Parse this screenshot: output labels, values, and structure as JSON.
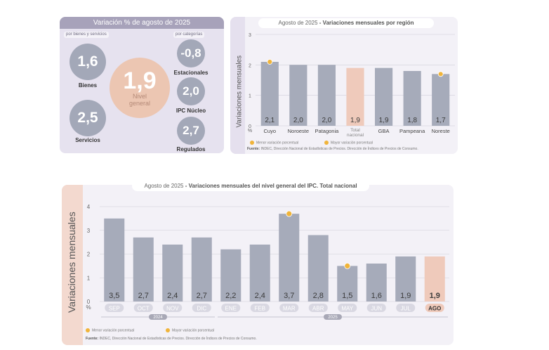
{
  "summary": {
    "header": "Variación % de agosto de 2025",
    "sub_left": "por bienes y servicios",
    "sub_right": "por categorías",
    "bienes": {
      "value": "1,6",
      "label": "Bienes"
    },
    "servicios": {
      "value": "2,5",
      "label": "Servicios"
    },
    "general": {
      "value": "1,9",
      "label_1": "Nivel",
      "label_2": "general"
    },
    "estacionales": {
      "value": "-0,8",
      "label": "Estacionales"
    },
    "nucleo": {
      "value": "2,0",
      "label": "IPC Núcleo"
    },
    "regulados": {
      "value": "2,7",
      "label": "Regulados"
    }
  },
  "chart_data": [
    {
      "type": "bar",
      "title_part1": "Agosto de 2025",
      "title_part2": "- Variaciones mensuales por región",
      "ylabel": "Variaciones mensuales",
      "unit": "%",
      "categories": [
        "Cuyo",
        "Noroeste",
        "Patagonia",
        "Total nacional",
        "GBA",
        "Pampeana",
        "Noreste"
      ],
      "values": [
        2.1,
        2.0,
        2.0,
        1.9,
        1.9,
        1.8,
        1.7
      ],
      "value_labels": [
        "2,1",
        "2,0",
        "2,0",
        "1,9",
        "1,9",
        "1,8",
        "1,7"
      ],
      "highlight_index": 3,
      "yticks": [
        0,
        1,
        2,
        3
      ],
      "ylim": [
        0,
        3
      ],
      "marker_max_index": 0,
      "marker_min_index": 6,
      "legend_min": "Menor variación porcentual",
      "legend_max": "Mayor variación porcentual",
      "source_label": "Fuente:",
      "source": "INDEC, Dirección Nacional de Estadísticas de Precios. Dirección de Índices de Precios de Consumo."
    },
    {
      "type": "bar",
      "title_part1": "Agosto de 2025",
      "title_part2": "- Variaciones mensuales del nivel general del IPC. Total nacional",
      "ylabel": "Variaciones mensuales",
      "unit": "%",
      "categories": [
        "SEP",
        "OCT",
        "NOV",
        "DIC",
        "ENE",
        "FEB",
        "MAR",
        "ABR",
        "MAY",
        "JUN",
        "JUL",
        "AGO"
      ],
      "values": [
        3.5,
        2.7,
        2.4,
        2.7,
        2.2,
        2.4,
        3.7,
        2.8,
        1.5,
        1.6,
        1.9,
        1.9
      ],
      "value_labels": [
        "3,5",
        "2,7",
        "2,4",
        "2,7",
        "2,2",
        "2,4",
        "3,7",
        "2,8",
        "1,5",
        "1,6",
        "1,9",
        "1,9"
      ],
      "highlight_index": 11,
      "years": [
        {
          "label": "2024",
          "from": 0,
          "to": 3
        },
        {
          "label": "2025",
          "from": 4,
          "to": 11
        }
      ],
      "yticks": [
        0,
        1,
        2,
        3,
        4
      ],
      "ylim": [
        0,
        4
      ],
      "marker_max_index": 6,
      "marker_min_index": 8,
      "legend_min": "Menor variación porcentual",
      "legend_max": "Mayor variación porcentual",
      "source_label": "Fuente:",
      "source": "INDEC, Dirección Nacional de Estadísticas de Precios. Dirección de Índices de Precios de Consumo."
    }
  ],
  "colors": {
    "bar": "#a6abba",
    "highlight": "#efcabb",
    "marker": "#f0b43a",
    "grid": "#d0d0d8"
  }
}
